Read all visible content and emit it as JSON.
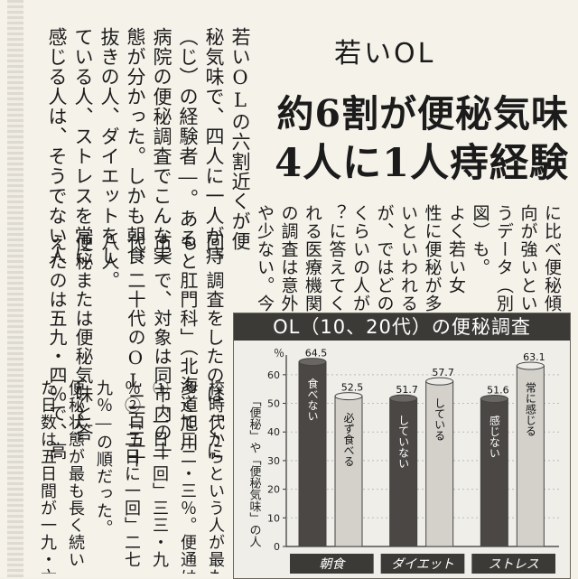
{
  "article": {
    "kicker": "若いOL",
    "headline_1": "約6割が便秘気味",
    "headline_2": "4人に1人痔経験",
    "columns_right": [
      "に比べ便秘傾",
      "向が強いとい",
      "うデータ（別",
      "図）も。",
      "よく若い女",
      "性に便秘が多",
      "いといわれる",
      "が、ではどの",
      "くらいの人が",
      "？に答えてく",
      "れる医療機関",
      "の調査は意外",
      "や少ない。今"
    ],
    "columns_left": [
      "若いOLの六割近くが便",
      "秘気味で、四人に一人が痔",
      "（じ）の経験者―。ある",
      "病院の便秘調査でこんな実",
      "態が分かった。しかも朝食",
      "抜きの人、ダイエットをし",
      "ている人、ストレスを常に",
      "感じる人は、そうでない人"
    ],
    "columns_bottom": [
      "回、調査をしたのは「くに",
      "もと肛門科」（北海道旭川",
      "市）で、対象は同市内の十",
      "代、二十代のOL二百五十",
      "八人。",
      "便秘または便秘気味と答",
      "えたのは五九・四％で、高",
      "校時代からという人が最も",
      "多くて三二・三％。便通は",
      "①「一日一回」三三・九",
      "％②「二日に一回」二七・",
      "九％―の順だった。",
      "便秘状態が最も長く続い",
      "た日数は五日間が一九・六"
    ]
  },
  "chart": {
    "title": "OL（10、20代）の便秘調査",
    "y_unit": "％",
    "y_note": "「便秘」や「便秘気味」の人"
  },
  "chart_data": {
    "type": "bar",
    "title": "OL（10、20代）の便秘調査",
    "ylabel": "「便秘」や「便秘気味」の人",
    "y_unit": "%",
    "ylim": [
      0,
      65
    ],
    "yticks": [
      0,
      10,
      20,
      30,
      40,
      50,
      60
    ],
    "groups": [
      {
        "label": "朝食",
        "bars": [
          {
            "label": "食べない",
            "value": 64.5
          },
          {
            "label": "必ず食べる",
            "value": 52.5
          }
        ]
      },
      {
        "label": "ダイエット",
        "bars": [
          {
            "label": "していない",
            "value": 51.7
          },
          {
            "label": "している",
            "value": 57.7
          }
        ]
      },
      {
        "label": "ストレス",
        "bars": [
          {
            "label": "感じない",
            "value": 51.6
          },
          {
            "label": "常に感じる",
            "value": 63.1
          }
        ]
      }
    ],
    "colors": {
      "dark": "#4a4744",
      "light": "#d4d1cb"
    }
  }
}
